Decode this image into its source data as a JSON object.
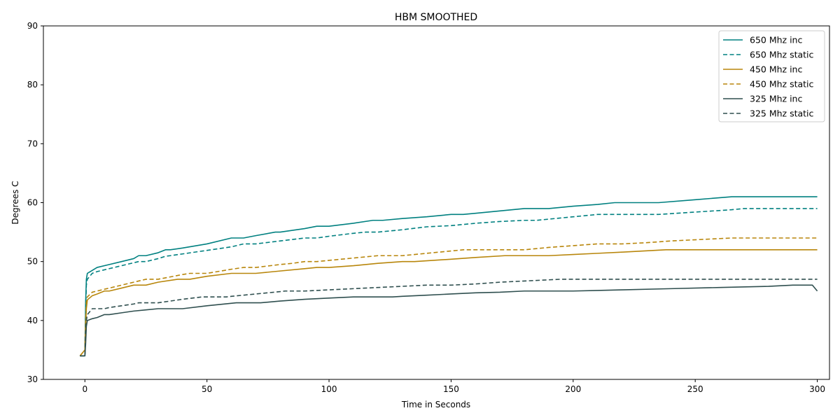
{
  "chart_data": {
    "type": "line",
    "title": "HBM SMOOTHED",
    "xlabel": "Time in Seconds",
    "ylabel": "Degrees C",
    "xlim": [
      -17,
      305
    ],
    "ylim": [
      30,
      90
    ],
    "xticks": [
      0,
      50,
      100,
      150,
      200,
      250,
      300
    ],
    "yticks": [
      30,
      40,
      50,
      60,
      70,
      80,
      90
    ],
    "grid": false,
    "legend_position": "top-right",
    "series": [
      {
        "name": "650 Mhz inc",
        "color": "#008080",
        "dash": "solid",
        "x": [
          -2,
          0,
          0.3,
          0.6,
          1,
          3,
          5,
          10,
          15,
          20,
          22,
          25,
          30,
          33,
          35,
          40,
          50,
          60,
          63,
          65,
          70,
          78,
          80,
          90,
          95,
          100,
          110,
          118,
          122,
          130,
          140,
          150,
          155,
          160,
          170,
          180,
          185,
          190,
          200,
          210,
          217,
          225,
          235,
          250,
          265,
          280,
          300
        ],
        "y": [
          34,
          34,
          43,
          47,
          48,
          48.5,
          49,
          49.5,
          50,
          50.5,
          51,
          51,
          51.5,
          52,
          52,
          52.3,
          53,
          54,
          54,
          54,
          54.4,
          55,
          55,
          55.6,
          56,
          56,
          56.5,
          57,
          57,
          57.3,
          57.6,
          58,
          58,
          58.2,
          58.6,
          59,
          59,
          59,
          59.4,
          59.7,
          60,
          60,
          60,
          60.5,
          61,
          61,
          61
        ]
      },
      {
        "name": "650 Mhz static",
        "color": "#008080",
        "dash": "dashed",
        "x": [
          -2,
          0,
          0.3,
          0.6,
          1,
          3,
          5,
          10,
          15,
          20,
          22,
          25,
          30,
          33,
          35,
          40,
          50,
          60,
          65,
          70,
          80,
          90,
          95,
          100,
          110,
          115,
          120,
          130,
          140,
          150,
          160,
          170,
          180,
          185,
          190,
          200,
          210,
          215,
          220,
          230,
          235,
          250,
          265,
          270,
          280,
          300
        ],
        "y": [
          34,
          34,
          42,
          46,
          47,
          48,
          48.3,
          48.8,
          49.3,
          49.8,
          50,
          50,
          50.5,
          50.9,
          51,
          51.3,
          51.9,
          52.5,
          53,
          53,
          53.5,
          54,
          54,
          54.3,
          54.8,
          55,
          55,
          55.4,
          55.9,
          56.1,
          56.5,
          56.8,
          57,
          57,
          57.2,
          57.6,
          58,
          58,
          58,
          58,
          58,
          58.4,
          58.8,
          59,
          59,
          59
        ]
      },
      {
        "name": "450 Mhz inc",
        "color": "#b8860b",
        "dash": "solid",
        "x": [
          -2,
          0,
          0.3,
          0.6,
          1,
          3,
          5,
          8,
          10,
          15,
          20,
          25,
          30,
          38,
          40,
          43,
          50,
          60,
          65,
          70,
          80,
          90,
          95,
          100,
          110,
          120,
          130,
          135,
          150,
          160,
          172,
          180,
          190,
          200,
          210,
          220,
          238,
          250,
          270,
          300
        ],
        "y": [
          34,
          35,
          39,
          42,
          43.5,
          44.2,
          44.5,
          45,
          45,
          45.5,
          46,
          46,
          46.5,
          47,
          47,
          47,
          47.5,
          48,
          48,
          48,
          48.4,
          48.8,
          49,
          49,
          49.3,
          49.7,
          50,
          50,
          50.4,
          50.7,
          51,
          51,
          51,
          51.2,
          51.4,
          51.6,
          52,
          52,
          52,
          52
        ]
      },
      {
        "name": "450 Mhz static",
        "color": "#b8860b",
        "dash": "dashed",
        "x": [
          -2,
          0,
          0.3,
          0.6,
          1,
          3,
          5,
          10,
          15,
          20,
          25,
          28,
          30,
          40,
          43,
          50,
          60,
          65,
          70,
          80,
          85,
          90,
          95,
          100,
          110,
          120,
          125,
          130,
          140,
          150,
          155,
          160,
          170,
          180,
          190,
          200,
          210,
          215,
          220,
          230,
          240,
          250,
          265,
          270,
          280,
          300
        ],
        "y": [
          34,
          35,
          40,
          43,
          44,
          44.8,
          45,
          45.5,
          46,
          46.5,
          47,
          47,
          47,
          47.8,
          48,
          48,
          48.7,
          49,
          49,
          49.5,
          49.7,
          50,
          50,
          50.2,
          50.6,
          51,
          51,
          51,
          51.4,
          51.8,
          52,
          52,
          52,
          52,
          52.4,
          52.7,
          53,
          53,
          53,
          53.2,
          53.5,
          53.7,
          54,
          54,
          54,
          54
        ]
      },
      {
        "name": "325 Mhz inc",
        "color": "#2f4f4f",
        "dash": "solid",
        "x": [
          -2,
          0,
          0.3,
          0.6,
          1,
          3,
          5,
          8,
          10,
          15,
          20,
          25,
          30,
          35,
          40,
          50,
          62,
          65,
          72,
          80,
          90,
          100,
          110,
          115,
          120,
          126,
          130,
          140,
          150,
          160,
          170,
          180,
          188,
          200,
          210,
          220,
          240,
          260,
          280,
          290,
          298,
          300
        ],
        "y": [
          34,
          34,
          36,
          39,
          40,
          40.3,
          40.5,
          41,
          41,
          41.3,
          41.6,
          41.8,
          42,
          42,
          42,
          42.5,
          43,
          43,
          43,
          43.3,
          43.6,
          43.8,
          44,
          44,
          44,
          44,
          44.1,
          44.3,
          44.5,
          44.7,
          44.8,
          45,
          45,
          45,
          45.1,
          45.2,
          45.4,
          45.6,
          45.8,
          46,
          46,
          45
        ]
      },
      {
        "name": "325 Mhz static",
        "color": "#2f4f4f",
        "dash": "dashed",
        "x": [
          -2,
          0,
          0.3,
          0.6,
          1,
          2,
          3,
          5,
          8,
          10,
          15,
          20,
          22,
          25,
          30,
          35,
          40,
          48,
          50,
          58,
          60,
          70,
          80,
          82,
          90,
          100,
          110,
          120,
          130,
          140,
          150,
          160,
          170,
          180,
          190,
          195,
          200,
          220,
          250,
          280,
          300
        ],
        "y": [
          34,
          34,
          38,
          40,
          41,
          41.5,
          42,
          42,
          42,
          42.2,
          42.5,
          42.8,
          43,
          43,
          43,
          43.3,
          43.6,
          44,
          44,
          44,
          44.1,
          44.5,
          44.9,
          45,
          45,
          45.2,
          45.4,
          45.6,
          45.8,
          46,
          46,
          46.2,
          46.5,
          46.7,
          46.9,
          47,
          47,
          47,
          47,
          47,
          47
        ]
      }
    ]
  }
}
